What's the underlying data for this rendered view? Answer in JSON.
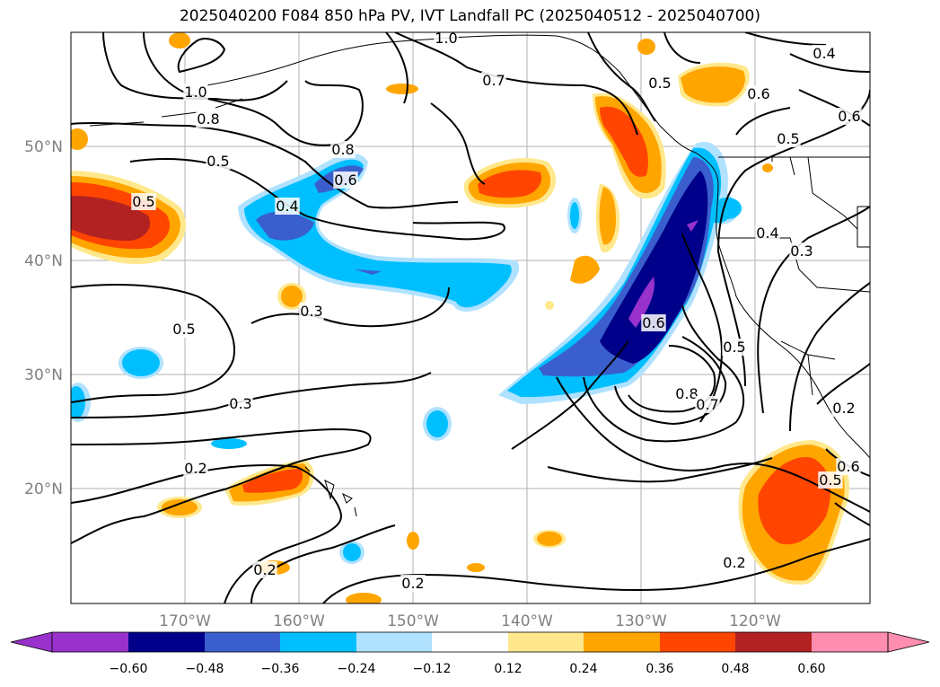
{
  "title": "2025040200 F084 850 hPa PV, IVT Landfall PC (2025040512 - 2025040700)",
  "axes": {
    "lat_labels": [
      "50°N",
      "40°N",
      "30°N",
      "20°N"
    ],
    "lon_labels": [
      "170°W",
      "160°W",
      "150°W",
      "140°W",
      "130°W",
      "120°W"
    ]
  },
  "contour_labels": [
    "1.0",
    "1.0",
    "0.8",
    "0.7",
    "0.5",
    "0.4",
    "0.6",
    "0.6",
    "0.5",
    "0.5",
    "0.8",
    "0.6",
    "0.4",
    "0.5",
    "0.3",
    "0.5",
    "0.3",
    "0.4",
    "0.3",
    "0.6",
    "0.5",
    "0.8",
    "0.7",
    "0.2",
    "0.2",
    "0.2",
    "0.2",
    "0.5",
    "0.6",
    "0.2"
  ],
  "colorbar": {
    "ticks": [
      "−0.60",
      "−0.48",
      "−0.36",
      "−0.24",
      "−0.12",
      "0.12",
      "0.24",
      "0.36",
      "0.48",
      "0.60"
    ],
    "colors": [
      "#9932CC",
      "#00008B",
      "#3A5FCD",
      "#00BFFF",
      "#B0E2FF",
      "#FFFFFF",
      "#FFE88C",
      "#FFA500",
      "#FF4500",
      "#B22222",
      "#FF8DB0"
    ]
  },
  "colors": {
    "neg_strong": "#00008B",
    "neg_mid": "#3A5FCD",
    "neg_light": "#00BFFF",
    "neg_faint": "#B0E2FF",
    "neg_extreme": "#9932CC",
    "pos_faint": "#FFE88C",
    "pos_light": "#FFA500",
    "pos_mid": "#FF4500",
    "pos_strong": "#B22222"
  }
}
